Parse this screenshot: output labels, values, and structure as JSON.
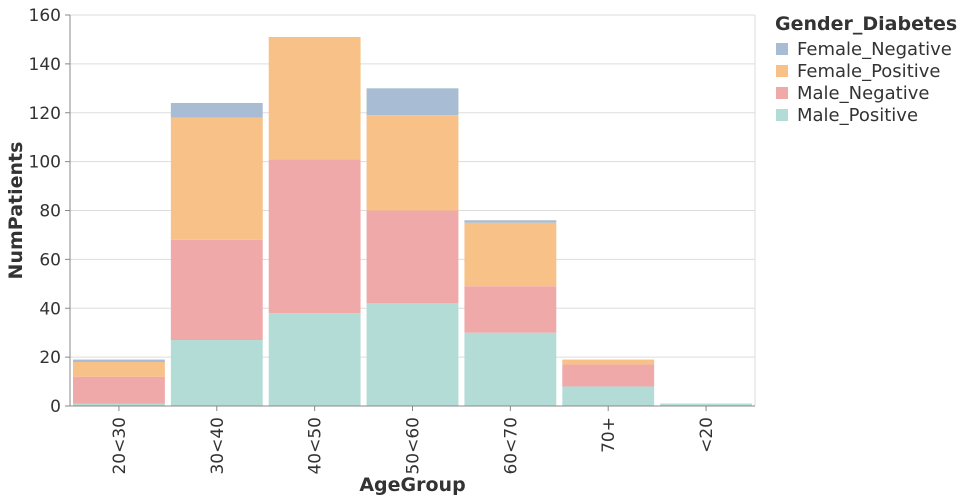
{
  "chart_data": {
    "type": "bar",
    "stacked": true,
    "xlabel": "AgeGroup",
    "ylabel": "NumPatients",
    "ylim": [
      0,
      160
    ],
    "yticks": [
      0,
      20,
      40,
      60,
      80,
      100,
      120,
      140,
      160
    ],
    "grid": true,
    "categories": [
      "20<30",
      "30<40",
      "40<50",
      "50<60",
      "60<70",
      "70+",
      "<20"
    ],
    "legend": {
      "title": "Gender_Diabetes",
      "placement": "right"
    },
    "series": [
      {
        "name": "Male_Positive",
        "color": "#b3dcd6",
        "values": [
          1,
          27,
          38,
          42,
          30,
          8,
          1
        ]
      },
      {
        "name": "Male_Negative",
        "color": "#f0a9a9",
        "values": [
          11,
          41,
          63,
          38,
          19,
          9,
          0
        ]
      },
      {
        "name": "Female_Positive",
        "color": "#f8c188",
        "values": [
          6,
          50,
          50,
          39,
          26,
          2,
          0
        ]
      },
      {
        "name": "Female_Negative",
        "color": "#a8bdd3",
        "values": [
          1,
          6,
          0,
          11,
          1,
          0,
          0
        ]
      }
    ],
    "legend_order": [
      "Female_Negative",
      "Female_Positive",
      "Male_Negative",
      "Male_Positive"
    ]
  }
}
